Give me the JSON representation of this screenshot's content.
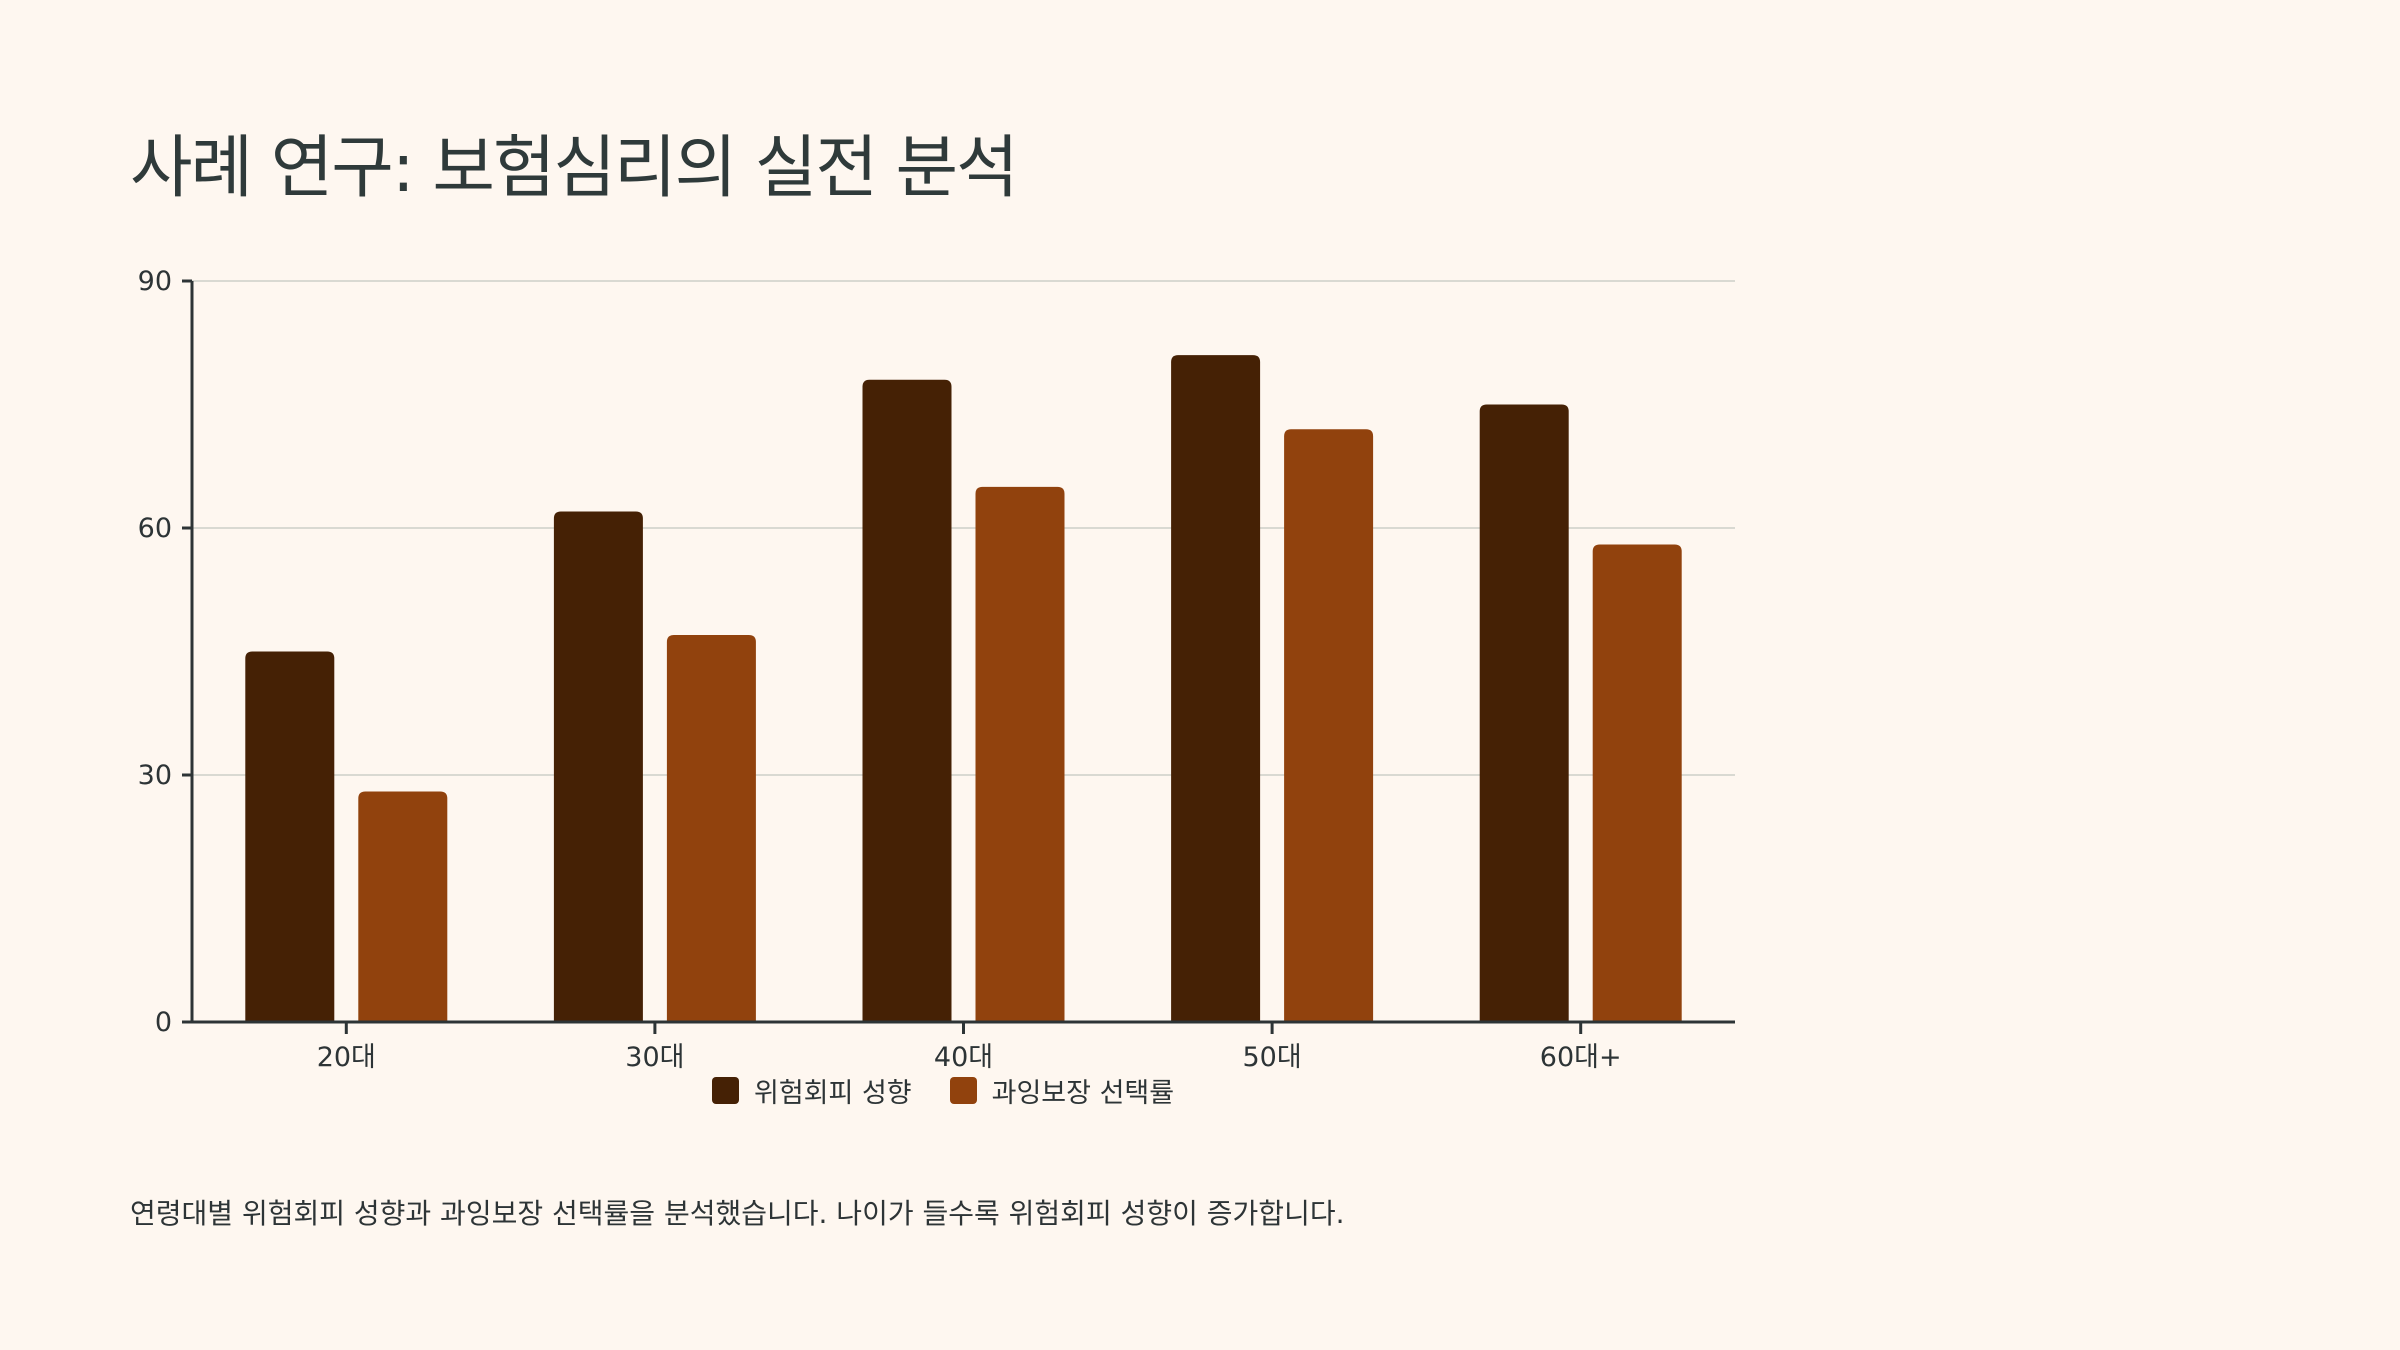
{
  "slide": {
    "title": "사례 연구: 보험심리의 실전 분석",
    "caption": "연령대별 위험회피 성향과 과잉보장 선택률을 분석했습니다. 나이가 들수록 위험회피 성향이 증가합니다."
  },
  "colors": {
    "background": "#FEF7F0",
    "series_1": "#452105",
    "series_2": "#91420D",
    "gridline": "#D9D9D2",
    "axis": "#2D3436"
  },
  "chart_data": {
    "type": "bar",
    "categories": [
      "20대",
      "30대",
      "40대",
      "50대",
      "60대+"
    ],
    "series": [
      {
        "name": "위험회피 성향",
        "values": [
          45,
          62,
          78,
          81,
          75
        ]
      },
      {
        "name": "과잉보장 선택률",
        "values": [
          28,
          47,
          65,
          72,
          58
        ]
      }
    ],
    "ylim": [
      0,
      90
    ],
    "yticks": [
      0,
      30,
      60,
      90
    ],
    "grid": true,
    "legend_position": "bottom-center",
    "title": "",
    "xlabel": "",
    "ylabel": ""
  }
}
